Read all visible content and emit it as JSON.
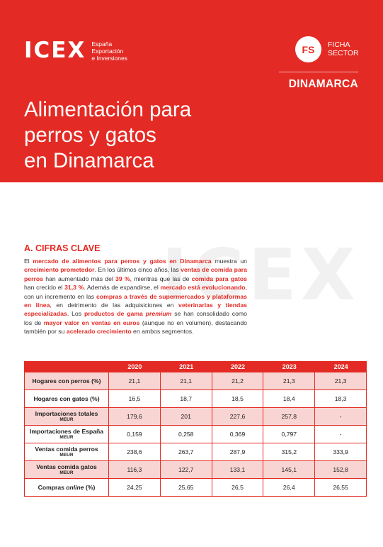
{
  "header": {
    "logo_text": "ICEX",
    "logo_sub": [
      "España",
      "Exportación",
      "e Inversiones"
    ],
    "badge": "FS",
    "badge_label": [
      "FICHA",
      "SECTOR"
    ],
    "country": "DINAMARCA",
    "title_lines": [
      "Alimentación para",
      "perros y gatos",
      "en Dinamarca"
    ]
  },
  "watermark": "ICEX",
  "section": {
    "title": "A. CIFRAS CLAVE",
    "p": [
      "El ",
      "mercado de alimentos para perros y gatos en Dinamarca",
      " muestra un ",
      "crecimiento prometedor",
      ". En los últimos cinco años, las ",
      "ventas de comida para perros",
      " han aumentado más del ",
      "39 %",
      ", mientras que las de ",
      "comida para gatos",
      " han crecido el ",
      "31,3 %",
      ". Además de expandirse, el ",
      "mercado está evolucionando",
      ", con un incremento en las ",
      "compras a través de supermercados y plataformas en línea",
      ", en detrimento de las adquisiciones en ",
      "veterinarias y tiendas especializadas",
      ". Los ",
      "productos de gama ",
      "premium",
      " se han consolidado como los de ",
      "mayor valor en ventas en euros",
      " (aunque no en volumen), destacando también por su ",
      "acelerado crecimiento",
      " en ambos segmentos."
    ]
  },
  "table": {
    "years": [
      "2020",
      "2021",
      "2022",
      "2023",
      "2024"
    ],
    "rows": [
      {
        "label": "Hogares con perros (%)",
        "unit": "",
        "values": [
          "21,1",
          "21,1",
          "21,2",
          "21,3",
          "21,3"
        ]
      },
      {
        "label": "Hogares con gatos (%)",
        "unit": "",
        "values": [
          "16,5",
          "18,7",
          "18,5",
          "18,4",
          "18,3"
        ]
      },
      {
        "label": "Importaciones totales",
        "unit": "MEUR",
        "values": [
          "179,6",
          "201",
          "227,6",
          "257,8",
          "-"
        ]
      },
      {
        "label": "Importaciones de España",
        "unit": "MEUR",
        "values": [
          "0,159",
          "0,258",
          "0,369",
          "0,797",
          "-"
        ]
      },
      {
        "label": "Ventas comida perros",
        "unit": "MEUR",
        "values": [
          "238,6",
          "263,7",
          "287,9",
          "315,2",
          "333,9"
        ]
      },
      {
        "label": "Ventas comida gatos",
        "unit": "MEUR",
        "values": [
          "116,3",
          "122,7",
          "133,1",
          "145,1",
          "152,8"
        ]
      },
      {
        "label_pre": "Compras ",
        "label_em": "online",
        "label_post": " (%)",
        "unit": "",
        "values": [
          "24,25",
          "25,65",
          "26,5",
          "26,4",
          "26,55"
        ]
      }
    ]
  }
}
